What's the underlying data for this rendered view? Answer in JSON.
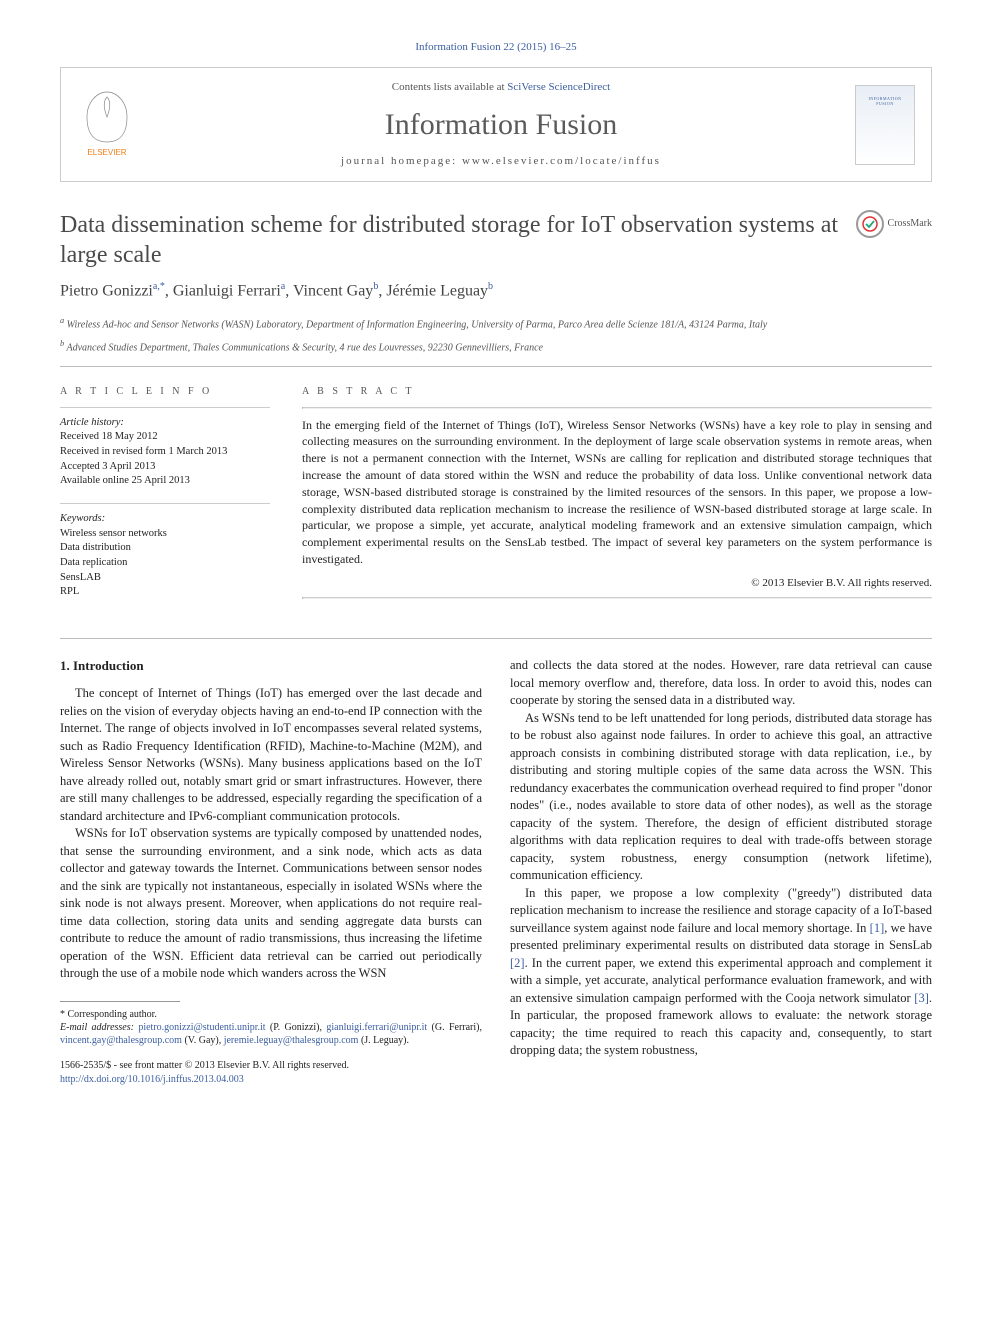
{
  "citation": "Information Fusion 22 (2015) 16–25",
  "header": {
    "contents_pre": "Contents lists available at ",
    "contents_link": "SciVerse ScienceDirect",
    "journal": "Information Fusion",
    "homepage_pre": "journal homepage: ",
    "homepage_url": "www.elsevier.com/locate/inffus",
    "cover_label": "INFORMATION FUSION"
  },
  "title": "Data dissemination scheme for distributed storage for IoT observation systems at large scale",
  "crossmark": "CrossMark",
  "authors_html": "Pietro Gonizzi|a,*|, Gianluigi Ferrari|a|, Vincent Gay|b|, Jérémie Leguay|b|",
  "affiliations": {
    "a": "Wireless Ad-hoc and Sensor Networks (WASN) Laboratory, Department of Information Engineering, University of Parma, Parco Area delle Scienze 181/A, 43124 Parma, Italy",
    "b": "Advanced Studies Department, Thales Communications & Security, 4 rue des Louvresses, 92230 Gennevilliers, France"
  },
  "info": {
    "heading": "a r t i c l e   i n f o",
    "history_label": "Article history:",
    "history": [
      "Received 18 May 2012",
      "Received in revised form 1 March 2013",
      "Accepted 3 April 2013",
      "Available online 25 April 2013"
    ],
    "keywords_label": "Keywords:",
    "keywords": [
      "Wireless sensor networks",
      "Data distribution",
      "Data replication",
      "SensLAB",
      "RPL"
    ]
  },
  "abstract": {
    "heading": "a b s t r a c t",
    "text": "In the emerging field of the Internet of Things (IoT), Wireless Sensor Networks (WSNs) have a key role to play in sensing and collecting measures on the surrounding environment. In the deployment of large scale observation systems in remote areas, when there is not a permanent connection with the Internet, WSNs are calling for replication and distributed storage techniques that increase the amount of data stored within the WSN and reduce the probability of data loss. Unlike conventional network data storage, WSN-based distributed storage is constrained by the limited resources of the sensors. In this paper, we propose a low-complexity distributed data replication mechanism to increase the resilience of WSN-based distributed storage at large scale. In particular, we propose a simple, yet accurate, analytical modeling framework and an extensive simulation campaign, which complement experimental results on the SensLab testbed. The impact of several key parameters on the system performance is investigated.",
    "copyright": "© 2013 Elsevier B.V. All rights reserved."
  },
  "section1": {
    "heading": "1. Introduction",
    "p1": "The concept of Internet of Things (IoT) has emerged over the last decade and relies on the vision of everyday objects having an end-to-end IP connection with the Internet. The range of objects involved in IoT encompasses several related systems, such as Radio Frequency Identification (RFID), Machine-to-Machine (M2M), and Wireless Sensor Networks (WSNs). Many business applications based on the IoT have already rolled out, notably smart grid or smart infrastructures. However, there are still many challenges to be addressed, especially regarding the specification of a standard architecture and IPv6-compliant communication protocols.",
    "p2": "WSNs for IoT observation systems are typically composed by unattended nodes, that sense the surrounding environment, and a sink node, which acts as data collector and gateway towards the Internet. Communications between sensor nodes and the sink are typically not instantaneous, especially in isolated WSNs where the sink node is not always present. Moreover, when applications do not require real-time data collection, storing data units and sending aggregate data bursts can contribute to reduce the amount of radio transmissions, thus increasing the lifetime operation of the WSN. Efficient data retrieval can be carried out periodically through the use of a mobile node which wanders across the WSN",
    "p3": "and collects the data stored at the nodes. However, rare data retrieval can cause local memory overflow and, therefore, data loss. In order to avoid this, nodes can cooperate by storing the sensed data in a distributed way.",
    "p4": "As WSNs tend to be left unattended for long periods, distributed data storage has to be robust also against node failures. In order to achieve this goal, an attractive approach consists in combining distributed storage with data replication, i.e., by distributing and storing multiple copies of the same data across the WSN. This redundancy exacerbates the communication overhead required to find proper \"donor nodes\" (i.e., nodes available to store data of other nodes), as well as the storage capacity of the system. Therefore, the design of efficient distributed storage algorithms with data replication requires to deal with trade-offs between storage capacity, system robustness, energy consumption (network lifetime), communication efficiency.",
    "p5a": "In this paper, we propose a low complexity (\"greedy\") distributed data replication mechanism to increase the resilience and storage capacity of a IoT-based surveillance system against node failure and local memory shortage. In ",
    "ref1": "[1]",
    "p5b": ", we have presented preliminary experimental results on distributed data storage in SensLab ",
    "ref2": "[2]",
    "p5c": ". In the current paper, we extend this experimental approach and complement it with a simple, yet accurate, analytical performance evaluation framework, and with an extensive simulation campaign performed with the Cooja network simulator ",
    "ref3": "[3]",
    "p5d": ". In particular, the proposed framework allows to evaluate: the network storage capacity; the time required to reach this capacity and, consequently, to start dropping data; the system robustness,"
  },
  "footnotes": {
    "corr": "* Corresponding author.",
    "emails_label": "E-mail addresses: ",
    "e1": "pietro.gonizzi@studenti.unipr.it",
    "n1": " (P. Gonizzi), ",
    "e2": "gianluigi.ferrari@unipr.it",
    "n2": " (G. Ferrari), ",
    "e3": "vincent.gay@thalesgroup.com",
    "n3": " (V. Gay), ",
    "e4": "jeremie.leguay@thalesgroup.com",
    "n4": " (J. Leguay)."
  },
  "footer": {
    "issn": "1566-2535/$ - see front matter © 2013 Elsevier B.V. All rights reserved.",
    "doi": "http://dx.doi.org/10.1016/j.inffus.2013.04.003"
  },
  "colors": {
    "link": "#3b5ea0",
    "elsevier_orange": "#ef7f1a",
    "text_gray": "#555"
  }
}
